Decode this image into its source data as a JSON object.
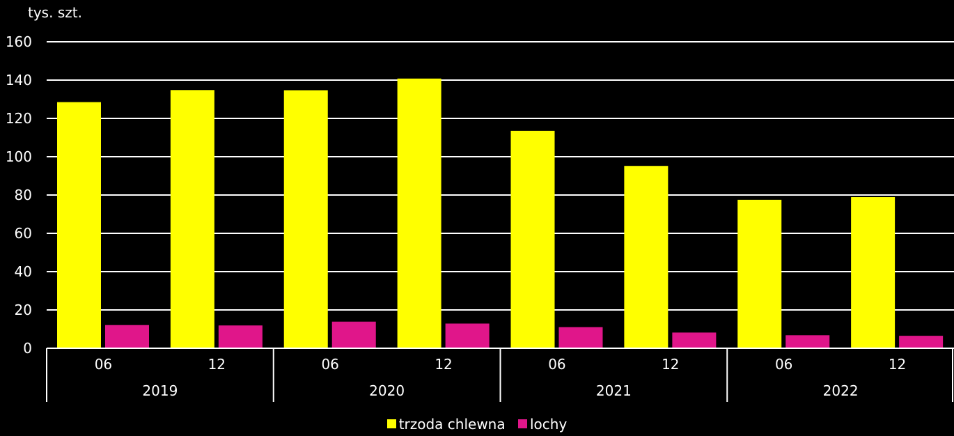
{
  "chart_data": {
    "type": "bar",
    "ylabel": "tys. szt.",
    "ylim": [
      0,
      160
    ],
    "yticks": [
      0,
      20,
      40,
      60,
      80,
      100,
      120,
      140,
      160
    ],
    "grid": true,
    "legend_position": "bottom-center",
    "categories": [
      "06",
      "12",
      "06",
      "12",
      "06",
      "12",
      "06",
      "12"
    ],
    "groups": [
      "2019",
      "2020",
      "2021",
      "2022"
    ],
    "series": [
      {
        "name": "trzoda chlewna",
        "color": "#ffff00",
        "values": [
          128.5,
          134.8,
          134.7,
          140.8,
          113.5,
          95.2,
          77.5,
          78.9
        ]
      },
      {
        "name": "lochy",
        "color": "#e0168a",
        "values": [
          12.1,
          11.9,
          13.9,
          12.9,
          11.0,
          8.2,
          6.8,
          6.5
        ]
      }
    ]
  }
}
